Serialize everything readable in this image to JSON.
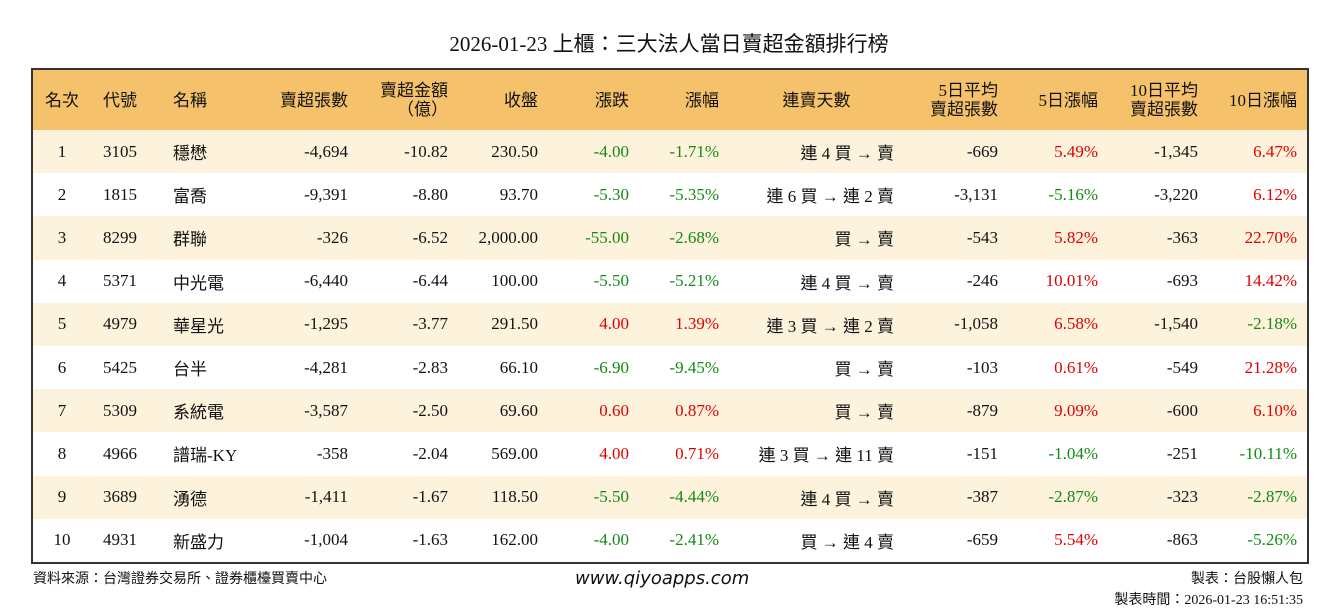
{
  "title": "2026-01-23 上櫃：三大法人當日賣超金額排行榜",
  "table": {
    "header_color": "#f5c26b",
    "odd_row_color": "#fdf3dd",
    "positive_color": "#e00000",
    "negative_color": "#138a13",
    "colored_columns": [
      6,
      7,
      10,
      12
    ],
    "header": [
      "名次",
      "代號",
      "名稱",
      "賣超張數",
      "賣超金額\n（億）",
      "收盤",
      "漲跌",
      "漲幅",
      "連賣天數",
      "5日平均\n賣超張數",
      "5日漲幅",
      "10日平均\n賣超張數",
      "10日漲幅"
    ],
    "rows": [
      [
        "1",
        "3105",
        "穩懋",
        "-4,694",
        "-10.82",
        "230.50",
        "-4.00",
        "-1.71%",
        "連 4 買 → 賣",
        "-669",
        "5.49%",
        "-1,345",
        "6.47%"
      ],
      [
        "2",
        "1815",
        "富喬",
        "-9,391",
        "-8.80",
        "93.70",
        "-5.30",
        "-5.35%",
        "連 6 買 → 連 2 賣",
        "-3,131",
        "-5.16%",
        "-3,220",
        "6.12%"
      ],
      [
        "3",
        "8299",
        "群聯",
        "-326",
        "-6.52",
        "2,000.00",
        "-55.00",
        "-2.68%",
        "買 → 賣",
        "-543",
        "5.82%",
        "-363",
        "22.70%"
      ],
      [
        "4",
        "5371",
        "中光電",
        "-6,440",
        "-6.44",
        "100.00",
        "-5.50",
        "-5.21%",
        "連 4 買 → 賣",
        "-246",
        "10.01%",
        "-693",
        "14.42%"
      ],
      [
        "5",
        "4979",
        "華星光",
        "-1,295",
        "-3.77",
        "291.50",
        "4.00",
        "1.39%",
        "連 3 買 → 連 2 賣",
        "-1,058",
        "6.58%",
        "-1,540",
        "-2.18%"
      ],
      [
        "6",
        "5425",
        "台半",
        "-4,281",
        "-2.83",
        "66.10",
        "-6.90",
        "-9.45%",
        "買 → 賣",
        "-103",
        "0.61%",
        "-549",
        "21.28%"
      ],
      [
        "7",
        "5309",
        "系統電",
        "-3,587",
        "-2.50",
        "69.60",
        "0.60",
        "0.87%",
        "買 → 賣",
        "-879",
        "9.09%",
        "-600",
        "6.10%"
      ],
      [
        "8",
        "4966",
        "譜瑞-KY",
        "-358",
        "-2.04",
        "569.00",
        "4.00",
        "0.71%",
        "連 3 買 → 連 11 賣",
        "-151",
        "-1.04%",
        "-251",
        "-10.11%"
      ],
      [
        "9",
        "3689",
        "湧德",
        "-1,411",
        "-1.67",
        "118.50",
        "-5.50",
        "-4.44%",
        "連 4 買 → 賣",
        "-387",
        "-2.87%",
        "-323",
        "-2.87%"
      ],
      [
        "10",
        "4931",
        "新盛力",
        "-1,004",
        "-1.63",
        "162.00",
        "-4.00",
        "-2.41%",
        "買 → 連 4 賣",
        "-659",
        "5.54%",
        "-863",
        "-5.26%"
      ]
    ]
  },
  "footer": {
    "source": "資料來源：台灣證券交易所、證券櫃檯買賣中心",
    "website": "www.qiyoapps.com",
    "author": "製表：台股懶人包",
    "time": "製表時間：2026-01-23 16:51:35"
  }
}
